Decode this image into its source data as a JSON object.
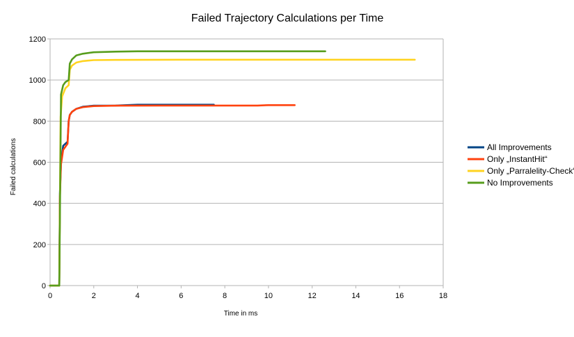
{
  "chart_data": {
    "type": "line",
    "title": "Failed Trajectory Calculations per Time",
    "xlabel": "Time in ms",
    "ylabel": "Failed calculations",
    "xlim": [
      0,
      18
    ],
    "ylim": [
      0,
      1200
    ],
    "xticks": [
      0,
      2,
      4,
      6,
      8,
      10,
      12,
      14,
      16,
      18
    ],
    "yticks": [
      0,
      200,
      400,
      600,
      800,
      1000,
      1200
    ],
    "grid": "horizontal",
    "legend_position": "right",
    "series": [
      {
        "name": "All Improvements",
        "color": "#004586",
        "points": [
          [
            0.0,
            0
          ],
          [
            0.42,
            0
          ],
          [
            0.45,
            450
          ],
          [
            0.5,
            600
          ],
          [
            0.6,
            680
          ],
          [
            0.8,
            700
          ],
          [
            0.85,
            800
          ],
          [
            0.9,
            830
          ],
          [
            1.0,
            845
          ],
          [
            1.2,
            860
          ],
          [
            1.5,
            870
          ],
          [
            2.0,
            875
          ],
          [
            3.0,
            876
          ],
          [
            4.0,
            880
          ],
          [
            6.0,
            880
          ],
          [
            7.5,
            880
          ]
        ]
      },
      {
        "name": "Only „InstantHit“",
        "color": "#ff420e",
        "points": [
          [
            0.0,
            0
          ],
          [
            0.42,
            0
          ],
          [
            0.45,
            430
          ],
          [
            0.5,
            590
          ],
          [
            0.6,
            660
          ],
          [
            0.8,
            690
          ],
          [
            0.85,
            800
          ],
          [
            0.9,
            830
          ],
          [
            1.0,
            845
          ],
          [
            1.2,
            860
          ],
          [
            1.5,
            868
          ],
          [
            2.0,
            873
          ],
          [
            3.0,
            875
          ],
          [
            5.0,
            876
          ],
          [
            9.5,
            876
          ],
          [
            10.0,
            878
          ],
          [
            11.2,
            878
          ]
        ]
      },
      {
        "name": "Only „Parralelity-Check“",
        "color": "#ffd320",
        "points": [
          [
            0.0,
            0
          ],
          [
            0.42,
            0
          ],
          [
            0.48,
            820
          ],
          [
            0.55,
            920
          ],
          [
            0.7,
            960
          ],
          [
            0.85,
            975
          ],
          [
            0.9,
            1050
          ],
          [
            1.0,
            1070
          ],
          [
            1.2,
            1085
          ],
          [
            1.5,
            1092
          ],
          [
            2.0,
            1097
          ],
          [
            3.0,
            1098
          ],
          [
            6.0,
            1099
          ],
          [
            16.7,
            1099
          ]
        ]
      },
      {
        "name": "No Improvements",
        "color": "#579d1c",
        "points": [
          [
            0.0,
            0
          ],
          [
            0.42,
            0
          ],
          [
            0.5,
            930
          ],
          [
            0.6,
            975
          ],
          [
            0.7,
            990
          ],
          [
            0.85,
            1000
          ],
          [
            0.9,
            1080
          ],
          [
            1.0,
            1100
          ],
          [
            1.2,
            1120
          ],
          [
            1.5,
            1128
          ],
          [
            2.0,
            1135
          ],
          [
            3.0,
            1138
          ],
          [
            4.0,
            1140
          ],
          [
            8.0,
            1140
          ],
          [
            12.6,
            1140
          ]
        ]
      }
    ]
  }
}
